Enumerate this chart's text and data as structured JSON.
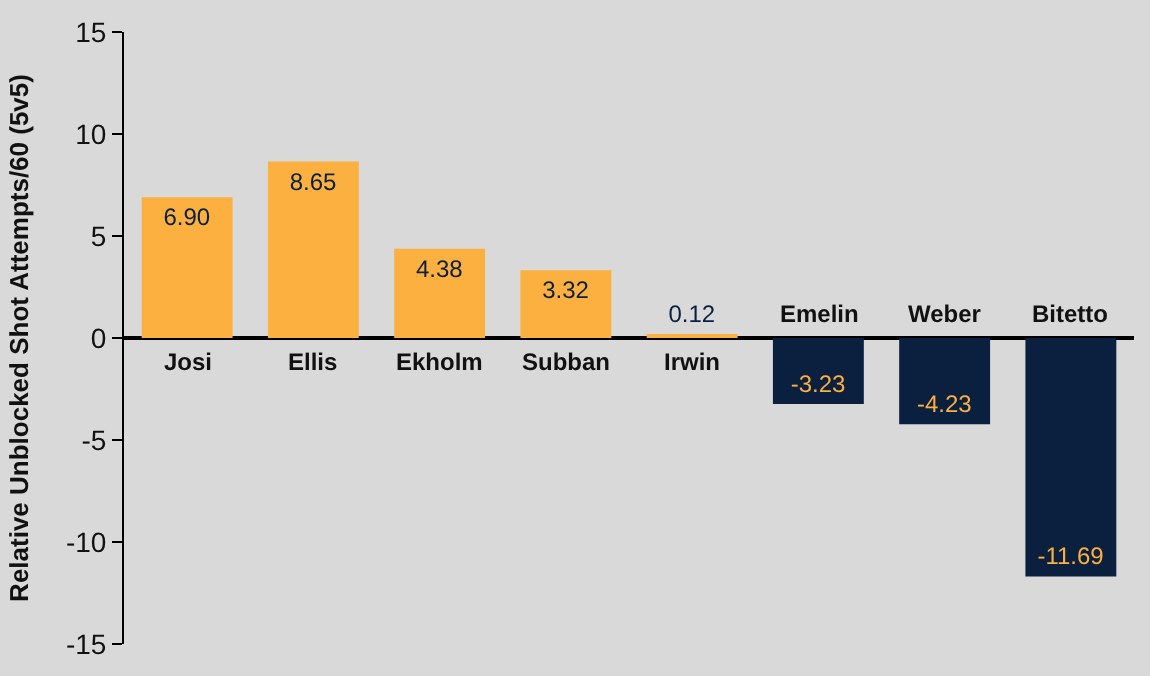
{
  "chart_data": {
    "type": "bar",
    "ylabel": "Relative Unblocked Shot Attempts/60 (5v5)",
    "categories": [
      "Josi",
      "Ellis",
      "Ekholm",
      "Subban",
      "Irwin",
      "Emelin",
      "Weber",
      "Bitetto"
    ],
    "values": [
      6.9,
      8.65,
      4.38,
      3.32,
      0.12,
      -3.23,
      -4.23,
      -11.69
    ],
    "value_labels": [
      "6.90",
      "8.65",
      "4.38",
      "3.32",
      "0.12",
      "-3.23",
      "-4.23",
      "-11.69"
    ],
    "colors": [
      "#fbb040",
      "#fbb040",
      "#fbb040",
      "#fbb040",
      "#fbb040",
      "#0b1f3f",
      "#0b1f3f",
      "#0b1f3f"
    ],
    "ylim": [
      -15,
      15
    ],
    "yticks": [
      -15,
      -10,
      -5,
      0,
      5,
      10,
      15
    ],
    "grid": false,
    "legend": false
  }
}
